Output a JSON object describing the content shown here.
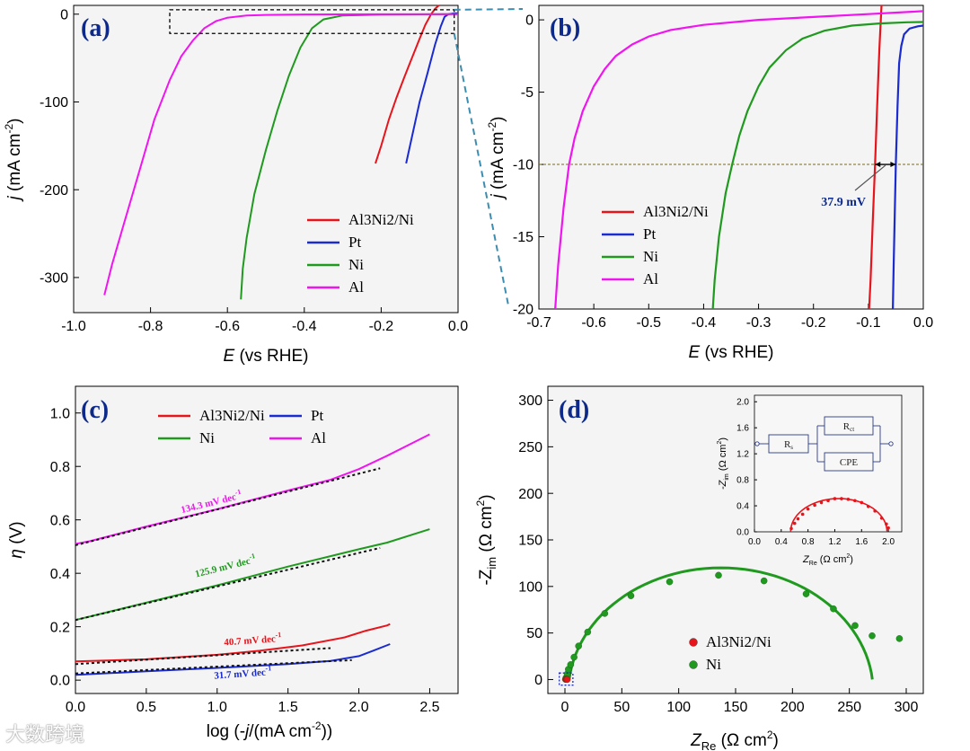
{
  "chart_data": [
    {
      "panel": "a",
      "type": "line",
      "panel_label": "(a)",
      "xlabel_var": "E",
      "xlabel_rest": " (vs RHE)",
      "ylabel_var": "j",
      "ylabel_rest": " (mA cm",
      "ylabel_sup": "-2",
      "ylabel_end": ")",
      "xlim": [
        -1.0,
        0.0
      ],
      "ylim": [
        -340,
        10
      ],
      "xticks": [
        -1.0,
        -0.8,
        -0.6,
        -0.4,
        -0.2,
        0.0
      ],
      "xtick_labels": [
        "-1.0",
        "-0.8",
        "-0.6",
        "-0.4",
        "-0.2",
        "0.0"
      ],
      "yticks": [
        0,
        -100,
        -200,
        -300
      ],
      "ytick_labels": [
        "0",
        "-100",
        "-200",
        "-300"
      ],
      "legend": [
        {
          "label": "Al3Ni2/Ni",
          "color": "#e8141c"
        },
        {
          "label": "Pt",
          "color": "#1a2bd1"
        },
        {
          "label": "Ni",
          "color": "#1f9a1f"
        },
        {
          "label": "Al",
          "color": "#f015f0"
        }
      ],
      "zoom_box_x": [
        -0.75,
        -0.01
      ],
      "zoom_box_y": [
        -22,
        5
      ],
      "series": [
        {
          "name": "Al3Ni2/Ni",
          "color": "#e8141c",
          "x": [
            -0.215,
            -0.2,
            -0.18,
            -0.16,
            -0.14,
            -0.12,
            -0.1,
            -0.085,
            -0.07,
            -0.06,
            -0.05
          ],
          "y": [
            -170,
            -150,
            -120,
            -95,
            -72,
            -50,
            -28,
            -12,
            0,
            6,
            10
          ]
        },
        {
          "name": "Pt",
          "color": "#1a2bd1",
          "x": [
            -0.135,
            -0.12,
            -0.1,
            -0.08,
            -0.06,
            -0.045,
            -0.035,
            -0.025,
            -0.01,
            0.0
          ],
          "y": [
            -170,
            -140,
            -100,
            -68,
            -35,
            -14,
            -3,
            0,
            1,
            1
          ]
        },
        {
          "name": "Ni",
          "color": "#1f9a1f",
          "x": [
            -0.565,
            -0.56,
            -0.55,
            -0.53,
            -0.5,
            -0.47,
            -0.44,
            -0.41,
            -0.38,
            -0.35,
            -0.3,
            -0.2,
            -0.1,
            0.0
          ],
          "y": [
            -325,
            -290,
            -255,
            -205,
            -155,
            -110,
            -70,
            -38,
            -16,
            -6,
            -1.5,
            -0.5,
            -0.2,
            0
          ]
        },
        {
          "name": "Al",
          "color": "#f015f0",
          "x": [
            -0.92,
            -0.9,
            -0.87,
            -0.83,
            -0.79,
            -0.75,
            -0.72,
            -0.69,
            -0.66,
            -0.63,
            -0.6,
            -0.55,
            -0.5,
            -0.4,
            -0.2,
            0.0
          ],
          "y": [
            -320,
            -285,
            -240,
            -180,
            -120,
            -75,
            -48,
            -30,
            -16,
            -8,
            -4,
            -1.5,
            -0.8,
            -0.3,
            -0.1,
            0
          ]
        }
      ]
    },
    {
      "panel": "b",
      "type": "line",
      "panel_label": "(b)",
      "xlabel_var": "E",
      "xlabel_rest": " (vs RHE)",
      "ylabel_var": "j",
      "ylabel_rest": " (mA cm",
      "ylabel_sup": "-2",
      "ylabel_end": ")",
      "xlim": [
        -0.7,
        0.0
      ],
      "ylim": [
        -20,
        1
      ],
      "xticks": [
        -0.7,
        -0.6,
        -0.5,
        -0.4,
        -0.3,
        -0.2,
        -0.1,
        0.0
      ],
      "xtick_labels": [
        "-0.7",
        "-0.6",
        "-0.5",
        "-0.4",
        "-0.3",
        "-0.2",
        "-0.1",
        "0.0"
      ],
      "yticks": [
        0,
        -5,
        -10,
        -15,
        -20
      ],
      "ytick_labels": [
        "0",
        "-5",
        "-10",
        "-15",
        "-20"
      ],
      "reference_line_y": -10,
      "annotation": "37.9 mV",
      "annotation_arrow_x": [
        -0.0879,
        -0.05
      ],
      "legend": [
        {
          "label": "Al3Ni2/Ni",
          "color": "#e8141c"
        },
        {
          "label": "Pt",
          "color": "#1a2bd1"
        },
        {
          "label": "Ni",
          "color": "#1f9a1f"
        },
        {
          "label": "Al",
          "color": "#f015f0"
        }
      ],
      "series": [
        {
          "name": "Al3Ni2/Ni",
          "color": "#e8141c",
          "x": [
            -0.1,
            -0.096,
            -0.092,
            -0.0879,
            -0.084,
            -0.08,
            -0.076
          ],
          "y": [
            -21,
            -18,
            -14,
            -10,
            -6,
            -2,
            1
          ]
        },
        {
          "name": "Pt",
          "color": "#1a2bd1",
          "x": [
            -0.056,
            -0.054,
            -0.052,
            -0.05,
            -0.047,
            -0.044,
            -0.04,
            -0.035,
            -0.025,
            -0.01,
            0.0
          ],
          "y": [
            -21,
            -17,
            -13.5,
            -10,
            -6,
            -3,
            -1.8,
            -1.0,
            -0.6,
            -0.45,
            -0.4
          ]
        },
        {
          "name": "Ni",
          "color": "#1f9a1f",
          "x": [
            -0.385,
            -0.38,
            -0.372,
            -0.36,
            -0.348,
            -0.335,
            -0.32,
            -0.3,
            -0.28,
            -0.25,
            -0.22,
            -0.18,
            -0.13,
            -0.08,
            -0.03,
            0.0
          ],
          "y": [
            -21,
            -18,
            -15,
            -12,
            -10,
            -8,
            -6.3,
            -4.6,
            -3.3,
            -2.1,
            -1.3,
            -0.75,
            -0.4,
            -0.25,
            -0.17,
            -0.15
          ]
        },
        {
          "name": "Al",
          "color": "#f015f0",
          "x": [
            -0.672,
            -0.665,
            -0.655,
            -0.645,
            -0.635,
            -0.62,
            -0.6,
            -0.58,
            -0.56,
            -0.53,
            -0.5,
            -0.46,
            -0.4,
            -0.3,
            -0.2,
            -0.1,
            0.0
          ],
          "y": [
            -21,
            -17,
            -13,
            -10,
            -8.2,
            -6.3,
            -4.6,
            -3.4,
            -2.5,
            -1.7,
            -1.15,
            -0.7,
            -0.35,
            0.0,
            0.2,
            0.4,
            0.6
          ]
        }
      ]
    },
    {
      "panel": "c",
      "type": "line",
      "panel_label": "(c)",
      "xlabel_pre": "log (-",
      "xlabel_var": "j",
      "xlabel_rest": "/(mA cm",
      "xlabel_sup": "-2",
      "xlabel_end": "))",
      "ylabel_var": "η",
      "ylabel_rest": " (V)",
      "xlim": [
        0.0,
        2.7
      ],
      "ylim": [
        -0.05,
        1.1
      ],
      "xticks": [
        0.0,
        0.5,
        1.0,
        1.5,
        2.0,
        2.5
      ],
      "xtick_labels": [
        "0.0",
        "0.5",
        "1.0",
        "1.5",
        "2.0",
        "2.5"
      ],
      "yticks": [
        0.0,
        0.2,
        0.4,
        0.6,
        0.8,
        1.0
      ],
      "ytick_labels": [
        "0.0",
        "0.2",
        "0.4",
        "0.6",
        "0.8",
        "1.0"
      ],
      "legend": [
        {
          "label": "Al3Ni2/Ni",
          "color": "#e8141c"
        },
        {
          "label": "Pt",
          "color": "#1a2bd1"
        },
        {
          "label": "Ni",
          "color": "#1f9a1f"
        },
        {
          "label": "Al",
          "color": "#f015f0"
        }
      ],
      "series": [
        {
          "name": "Al",
          "color": "#f015f0",
          "x": [
            0.0,
            0.1,
            0.5,
            1.0,
            1.5,
            1.8,
            2.0,
            2.2,
            2.5
          ],
          "y": [
            0.51,
            0.52,
            0.575,
            0.64,
            0.71,
            0.75,
            0.79,
            0.84,
            0.92
          ]
        },
        {
          "name": "Ni",
          "color": "#1f9a1f",
          "x": [
            0.0,
            0.5,
            1.0,
            1.5,
            2.0,
            2.2,
            2.5
          ],
          "y": [
            0.225,
            0.29,
            0.355,
            0.425,
            0.49,
            0.515,
            0.565
          ]
        },
        {
          "name": "Al3Ni2/Ni",
          "color": "#e8141c",
          "x": [
            0.0,
            0.5,
            1.0,
            1.3,
            1.6,
            1.9,
            2.05,
            2.2,
            2.22
          ],
          "y": [
            0.07,
            0.078,
            0.095,
            0.11,
            0.13,
            0.16,
            0.185,
            0.205,
            0.21
          ]
        },
        {
          "name": "Pt",
          "color": "#1a2bd1",
          "x": [
            0.0,
            0.5,
            1.0,
            1.5,
            1.8,
            2.0,
            2.1,
            2.22
          ],
          "y": [
            0.02,
            0.033,
            0.046,
            0.06,
            0.072,
            0.09,
            0.11,
            0.135
          ]
        }
      ],
      "fits": [
        {
          "label": "134.3 mV dec",
          "sup": "-1",
          "color": "#f015f0",
          "x": [
            0.0,
            2.15
          ],
          "y": [
            0.505,
            0.793
          ],
          "label_x": 0.75,
          "label_y": 0.625,
          "angle": -14
        },
        {
          "label": "125.9 mV dec",
          "sup": "-1",
          "color": "#1f9a1f",
          "x": [
            0.0,
            2.15
          ],
          "y": [
            0.225,
            0.495
          ],
          "label_x": 0.85,
          "label_y": 0.385,
          "angle": -14
        },
        {
          "label": "40.7 mV dec",
          "sup": "-1",
          "color": "#e8141c",
          "x": [
            0.0,
            1.8
          ],
          "y": [
            0.06,
            0.12
          ],
          "label_x": 1.05,
          "label_y": 0.13,
          "angle": -4
        },
        {
          "label": "31.7 mV dec",
          "sup": "-1",
          "color": "#1a2bd1",
          "x": [
            0.0,
            1.95
          ],
          "y": [
            0.025,
            0.075
          ],
          "label_x": 0.98,
          "label_y": 0.005,
          "angle": -4
        }
      ]
    },
    {
      "panel": "d",
      "type": "scatter",
      "panel_label": "(d)",
      "xlabel_var": "Z",
      "xlabel_sub": "Re",
      "xlabel_rest": " (Ω cm",
      "xlabel_sup": "2",
      "xlabel_end": ")",
      "ylabel_pre": "-Z",
      "ylabel_sub": "im",
      "ylabel_rest": " (Ω cm",
      "ylabel_sup": "2",
      "ylabel_end": ")",
      "xlim": [
        -15,
        315
      ],
      "ylim": [
        -15,
        315
      ],
      "xticks": [
        0,
        50,
        100,
        150,
        200,
        250,
        300
      ],
      "xtick_labels": [
        "0",
        "50",
        "100",
        "150",
        "200",
        "250",
        "300"
      ],
      "yticks": [
        0,
        50,
        100,
        150,
        200,
        250,
        300
      ],
      "ytick_labels": [
        "0",
        "50",
        "100",
        "150",
        "200",
        "250",
        "300"
      ],
      "legend": [
        {
          "label": "Al3Ni2/Ni",
          "color": "#e8141c"
        },
        {
          "label": "Ni",
          "color": "#1f9a1f"
        }
      ],
      "series": [
        {
          "name": "Ni",
          "color": "#1f9a1f",
          "x": [
            1,
            2,
            3,
            5,
            8,
            12,
            20,
            35,
            58,
            92,
            135,
            175,
            212,
            236,
            255,
            270,
            294
          ],
          "y": [
            2,
            6,
            11,
            16,
            24,
            36,
            51,
            71,
            90,
            105,
            112,
            106,
            92,
            76,
            58,
            47,
            44
          ]
        },
        {
          "name": "Al3Ni2/Ni",
          "color": "#e8141c",
          "x": [
            0.5,
            1.0,
            1.5,
            2.0
          ],
          "y": [
            0.2,
            0.5,
            0.4,
            0.1
          ]
        }
      ],
      "fit_arc": {
        "center_x": 137,
        "center_y": -14,
        "radius": 134,
        "color": "#1f9a1f"
      },
      "inset": {
        "xlim": [
          0.0,
          2.2
        ],
        "ylim": [
          0.0,
          2.1
        ],
        "xticks": [
          0.0,
          0.4,
          0.8,
          1.2,
          1.6,
          2.0
        ],
        "xtick_labels": [
          "0.0",
          "0.4",
          "0.8",
          "1.2",
          "1.6",
          "2.0"
        ],
        "yticks": [
          0.0,
          0.4,
          0.8,
          1.2,
          1.6,
          2.0
        ],
        "ytick_labels": [
          "0.0",
          "0.4",
          "0.8",
          "1.2",
          "1.6",
          "2.0"
        ],
        "xlabel_var": "Z",
        "xlabel_sub": "Re",
        "xlabel_rest": " (Ω cm",
        "xlabel_sup": "2",
        "xlabel_end": ")",
        "ylabel_pre": "-Z",
        "ylabel_sub": "im",
        "ylabel_rest": " (Ω cm",
        "ylabel_sup": "2",
        "ylabel_end": ")",
        "circuit": {
          "rs": "R",
          "rs_sub": "s",
          "rct": "R",
          "rct_sub": "ct",
          "cpe": "CPE"
        },
        "points_x": [
          0.55,
          0.6,
          0.65,
          0.72,
          0.8,
          0.9,
          1.0,
          1.1,
          1.2,
          1.3,
          1.4,
          1.5,
          1.6,
          1.7,
          1.8,
          1.9,
          1.97,
          2.0
        ],
        "points_y": [
          0.05,
          0.13,
          0.2,
          0.27,
          0.35,
          0.41,
          0.45,
          0.48,
          0.51,
          0.51,
          0.5,
          0.48,
          0.45,
          0.39,
          0.32,
          0.21,
          0.12,
          0.06
        ],
        "fit_center_x": 1.26,
        "fit_center_y": 0.0,
        "fit_radius": 0.72
      }
    }
  ],
  "watermark": "大数跨境"
}
